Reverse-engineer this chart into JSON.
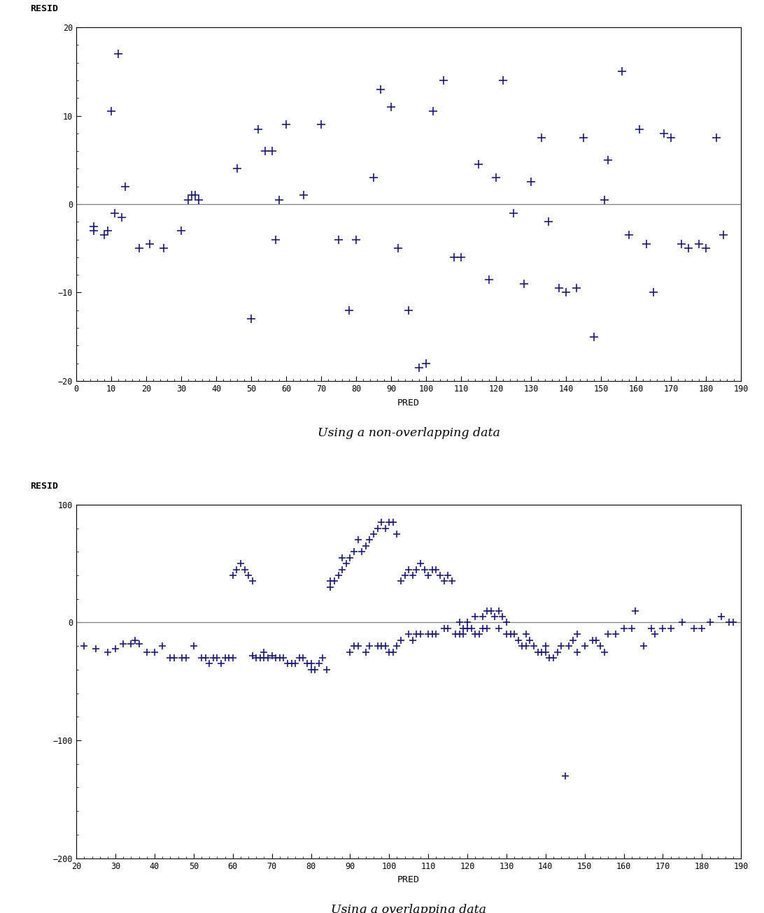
{
  "plot1": {
    "title": "Using a non-overlapping data",
    "xlabel": "PRED",
    "ylabel": "RESID",
    "xlim": [
      0,
      190
    ],
    "ylim": [
      -20,
      20
    ],
    "xticks": [
      0,
      10,
      20,
      30,
      40,
      50,
      60,
      70,
      80,
      90,
      100,
      110,
      120,
      130,
      140,
      150,
      160,
      170,
      180,
      190
    ],
    "yticks": [
      -20,
      -10,
      0,
      10,
      20
    ],
    "color": "#1a1a7a",
    "marker": "+",
    "markersize": 8,
    "points_x": [
      5,
      5,
      8,
      9,
      10,
      11,
      12,
      13,
      14,
      18,
      21,
      25,
      30,
      32,
      33,
      34,
      35,
      46,
      50,
      52,
      54,
      56,
      57,
      58,
      60,
      65,
      70,
      75,
      78,
      80,
      85,
      87,
      90,
      92,
      95,
      98,
      100,
      102,
      105,
      108,
      110,
      115,
      118,
      120,
      122,
      125,
      128,
      130,
      133,
      135,
      138,
      140,
      143,
      145,
      148,
      151,
      152,
      156,
      158,
      161,
      163,
      165,
      168,
      170,
      173,
      175,
      178,
      180,
      183,
      185
    ],
    "points_y": [
      -3,
      -2.5,
      -3.5,
      -3,
      10.5,
      -1,
      17,
      -1.5,
      2,
      -5,
      -4.5,
      -5,
      -3,
      0.5,
      1,
      1,
      0.5,
      4,
      -13,
      8.5,
      6,
      6,
      -4,
      0.5,
      9,
      1,
      9,
      -4,
      -12,
      -4,
      3,
      13,
      11,
      -5,
      -12,
      -18.5,
      -18,
      10.5,
      14,
      -6,
      -6,
      4.5,
      -8.5,
      3,
      14,
      -1,
      -9,
      2.5,
      7.5,
      -2,
      -9.5,
      -10,
      -9.5,
      7.5,
      -15,
      0.5,
      5,
      15,
      -3.5,
      8.5,
      -4.5,
      -10,
      8,
      7.5,
      -4.5,
      -5,
      -4.5,
      -5,
      7.5,
      -3.5
    ]
  },
  "plot2": {
    "title": "Using a overlapping data",
    "xlabel": "PRED",
    "ylabel": "RESID",
    "xlim": [
      20,
      190
    ],
    "ylim": [
      -200,
      100
    ],
    "xticks": [
      20,
      30,
      40,
      50,
      60,
      70,
      80,
      90,
      100,
      110,
      120,
      130,
      140,
      150,
      160,
      170,
      180,
      190
    ],
    "yticks": [
      -200,
      -100,
      0,
      100
    ],
    "color": "#1a1a7a",
    "marker": "+",
    "markersize": 7,
    "points_x": [
      22,
      25,
      28,
      30,
      32,
      34,
      35,
      36,
      38,
      40,
      42,
      44,
      45,
      47,
      48,
      50,
      52,
      53,
      54,
      55,
      56,
      57,
      58,
      59,
      60,
      60,
      61,
      62,
      63,
      64,
      65,
      65,
      66,
      67,
      68,
      68,
      69,
      70,
      71,
      72,
      73,
      74,
      75,
      76,
      77,
      78,
      79,
      80,
      80,
      81,
      82,
      83,
      84,
      85,
      85,
      86,
      87,
      88,
      88,
      89,
      90,
      90,
      91,
      91,
      92,
      92,
      93,
      94,
      94,
      95,
      95,
      96,
      97,
      97,
      98,
      98,
      99,
      99,
      100,
      100,
      101,
      101,
      102,
      102,
      103,
      103,
      104,
      105,
      105,
      106,
      106,
      107,
      107,
      108,
      108,
      109,
      110,
      110,
      111,
      111,
      112,
      112,
      113,
      114,
      114,
      115,
      115,
      116,
      117,
      118,
      118,
      119,
      119,
      120,
      120,
      121,
      122,
      122,
      123,
      124,
      124,
      125,
      125,
      126,
      127,
      128,
      128,
      129,
      130,
      130,
      131,
      132,
      133,
      134,
      135,
      135,
      136,
      137,
      138,
      139,
      140,
      140,
      141,
      142,
      143,
      144,
      145,
      146,
      147,
      148,
      148,
      150,
      152,
      153,
      154,
      155,
      156,
      158,
      160,
      162,
      163,
      165,
      167,
      168,
      170,
      172,
      175,
      178,
      180,
      182,
      185,
      187,
      188
    ],
    "points_y": [
      -20,
      -22,
      -25,
      -22,
      -18,
      -18,
      -15,
      -18,
      -25,
      -25,
      -20,
      -30,
      -30,
      -30,
      -30,
      -20,
      -30,
      -30,
      -35,
      -30,
      -30,
      -35,
      -30,
      -30,
      40,
      -30,
      45,
      50,
      45,
      40,
      35,
      -28,
      -30,
      -30,
      -25,
      -30,
      -30,
      -28,
      -30,
      -30,
      -30,
      -35,
      -35,
      -35,
      -30,
      -30,
      -35,
      -40,
      -35,
      -40,
      -35,
      -30,
      -40,
      30,
      35,
      35,
      40,
      45,
      55,
      50,
      55,
      -25,
      60,
      -20,
      70,
      -20,
      60,
      65,
      -25,
      70,
      -20,
      75,
      80,
      -20,
      85,
      -20,
      80,
      -20,
      85,
      -25,
      85,
      -25,
      75,
      -20,
      35,
      -15,
      40,
      45,
      -10,
      40,
      -15,
      45,
      -10,
      50,
      -10,
      45,
      40,
      -10,
      45,
      -10,
      45,
      -10,
      40,
      35,
      -5,
      40,
      -5,
      35,
      -10,
      -10,
      0,
      -10,
      -5,
      -5,
      0,
      -5,
      -10,
      5,
      -10,
      -5,
      5,
      -5,
      10,
      10,
      5,
      -5,
      10,
      5,
      -10,
      0,
      -10,
      -10,
      -15,
      -20,
      -20,
      -10,
      -15,
      -20,
      -25,
      -25,
      -25,
      -20,
      -30,
      -30,
      -25,
      -20,
      -130,
      -20,
      -15,
      -10,
      -25,
      -20,
      -15,
      -15,
      -20,
      -25,
      -10,
      -10,
      -5,
      -5,
      10,
      -20,
      -5,
      -10,
      -5,
      -5,
      0,
      -5,
      -5,
      0,
      5,
      0,
      0
    ]
  }
}
